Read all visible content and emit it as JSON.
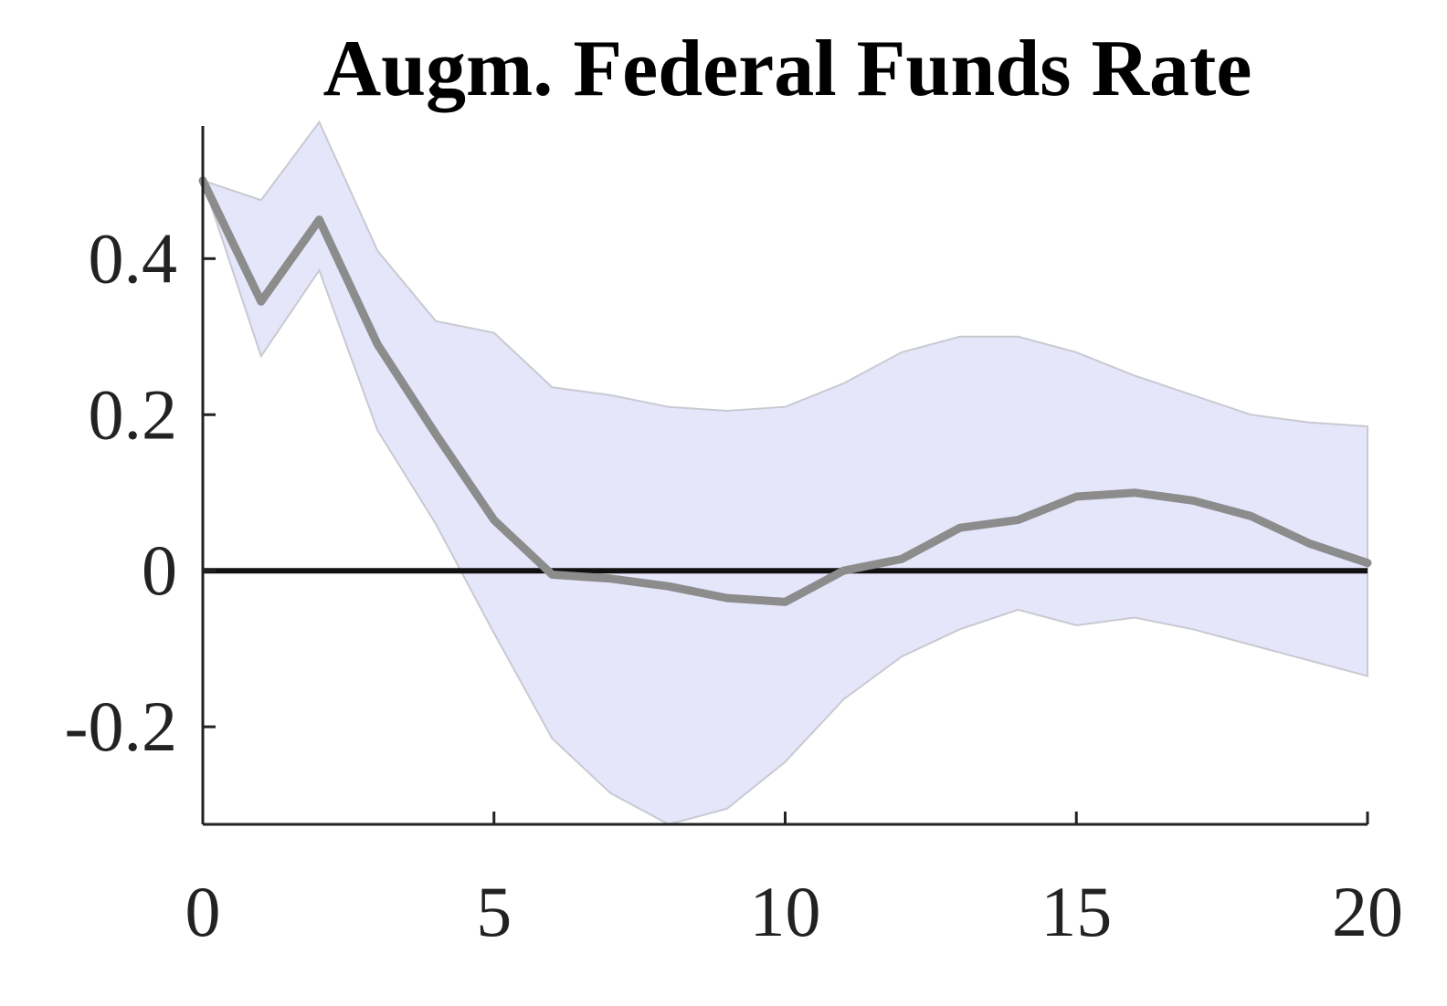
{
  "chart_data": {
    "type": "line",
    "title": "Augm. Federal Funds Rate",
    "xlabel": "",
    "ylabel": "",
    "xlim": [
      0,
      20
    ],
    "ylim": [
      -0.325,
      0.57
    ],
    "x_ticks": [
      0,
      5,
      10,
      15,
      20
    ],
    "x_tick_labels": [
      "0",
      "5",
      "10",
      "15",
      "20"
    ],
    "y_ticks": [
      -0.2,
      0,
      0.2,
      0.4
    ],
    "y_tick_labels": [
      "-0.2",
      "0",
      "0.2",
      "0.4"
    ],
    "grid": false,
    "legend": "none",
    "zero_line": 0,
    "x": [
      0,
      1,
      2,
      3,
      4,
      5,
      6,
      7,
      8,
      9,
      10,
      11,
      12,
      13,
      14,
      15,
      16,
      17,
      18,
      19,
      20
    ],
    "series": [
      {
        "role": "point-estimate",
        "values": [
          0.5,
          0.345,
          0.45,
          0.29,
          0.175,
          0.065,
          -0.005,
          -0.01,
          -0.02,
          -0.035,
          -0.04,
          0.0,
          0.015,
          0.055,
          0.065,
          0.095,
          0.1,
          0.09,
          0.07,
          0.035,
          0.01
        ]
      },
      {
        "role": "band-upper",
        "values": [
          0.5,
          0.475,
          0.575,
          0.41,
          0.32,
          0.305,
          0.235,
          0.225,
          0.21,
          0.205,
          0.21,
          0.24,
          0.28,
          0.3,
          0.3,
          0.28,
          0.25,
          0.225,
          0.2,
          0.19,
          0.185
        ]
      },
      {
        "role": "band-lower",
        "values": [
          0.5,
          0.275,
          0.385,
          0.18,
          0.06,
          -0.08,
          -0.215,
          -0.285,
          -0.325,
          -0.305,
          -0.245,
          -0.165,
          -0.11,
          -0.075,
          -0.05,
          -0.07,
          -0.06,
          -0.075,
          -0.095,
          -0.115,
          -0.135
        ]
      }
    ],
    "colors": {
      "line": "#8c8c8c",
      "band_fill": "#e6e6fb",
      "band_edge": "#c9c9d2",
      "zero_line": "#111111",
      "axis": "#222222"
    }
  }
}
